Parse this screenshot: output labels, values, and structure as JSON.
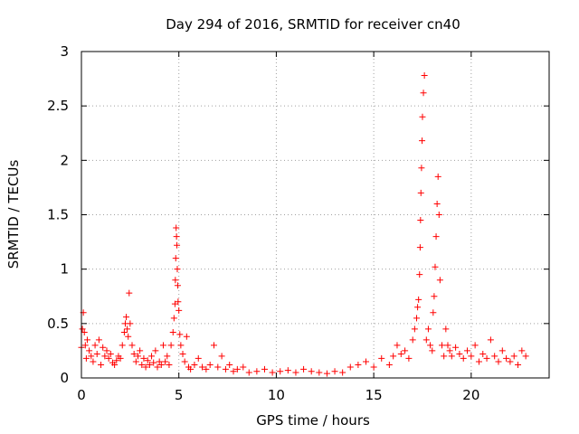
{
  "chart_data": {
    "type": "scatter",
    "title": "Day 294 of 2016, SRMTID for receiver cn40",
    "xlabel": "GPS time / hours",
    "ylabel": "SRMTID / TECUs",
    "xlim": [
      0,
      24
    ],
    "ylim": [
      0,
      3
    ],
    "xticks": [
      0,
      5,
      10,
      15,
      20
    ],
    "xtick_labels": [
      "0",
      "5",
      "10",
      "15",
      "20"
    ],
    "yticks": [
      0,
      0.5,
      1,
      1.5,
      2,
      2.5,
      3
    ],
    "ytick_labels": [
      "0",
      "0.5",
      "1",
      "1.5",
      "2",
      "2.5",
      "3"
    ],
    "grid": true,
    "marker": "+",
    "series": [
      {
        "name": "cn40",
        "color": "#ff0000",
        "x": [
          0.0,
          0.05,
          0.1,
          0.15,
          0.2,
          0.25,
          0.3,
          0.4,
          0.5,
          0.6,
          0.7,
          0.8,
          0.9,
          1.0,
          1.1,
          1.2,
          1.3,
          1.4,
          1.5,
          1.6,
          1.7,
          1.8,
          1.9,
          2.0,
          2.1,
          2.2,
          2.25,
          2.3,
          2.35,
          2.4,
          2.45,
          2.5,
          2.6,
          2.7,
          2.8,
          2.9,
          3.0,
          3.1,
          3.2,
          3.3,
          3.4,
          3.5,
          3.6,
          3.7,
          3.8,
          3.9,
          4.0,
          4.1,
          4.2,
          4.3,
          4.4,
          4.5,
          4.6,
          4.7,
          4.75,
          4.8,
          4.82,
          4.84,
          4.86,
          4.88,
          4.9,
          4.92,
          4.94,
          4.96,
          5.0,
          5.05,
          5.1,
          5.2,
          5.3,
          5.4,
          5.5,
          5.6,
          5.8,
          6.0,
          6.2,
          6.4,
          6.6,
          6.8,
          7.0,
          7.2,
          7.4,
          7.6,
          7.8,
          8.0,
          8.3,
          8.6,
          9.0,
          9.4,
          9.8,
          10.2,
          10.6,
          11.0,
          11.4,
          11.8,
          12.2,
          12.6,
          13.0,
          13.4,
          13.8,
          14.2,
          14.6,
          15.0,
          15.4,
          15.8,
          16.0,
          16.2,
          16.4,
          16.6,
          16.8,
          17.0,
          17.1,
          17.2,
          17.25,
          17.3,
          17.35,
          17.38,
          17.4,
          17.42,
          17.45,
          17.48,
          17.5,
          17.55,
          17.6,
          17.7,
          17.8,
          17.9,
          18.0,
          18.05,
          18.1,
          18.15,
          18.2,
          18.25,
          18.3,
          18.35,
          18.4,
          18.5,
          18.6,
          18.7,
          18.8,
          18.9,
          19.0,
          19.2,
          19.4,
          19.6,
          19.8,
          20.0,
          20.2,
          20.4,
          20.6,
          20.8,
          21.0,
          21.2,
          21.4,
          21.6,
          21.8,
          22.0,
          22.2,
          22.4,
          22.6,
          22.8
        ],
        "y": [
          0.28,
          0.45,
          0.6,
          0.42,
          0.3,
          0.18,
          0.35,
          0.25,
          0.2,
          0.15,
          0.3,
          0.22,
          0.35,
          0.12,
          0.28,
          0.2,
          0.25,
          0.18,
          0.22,
          0.14,
          0.12,
          0.16,
          0.2,
          0.18,
          0.3,
          0.42,
          0.5,
          0.56,
          0.45,
          0.38,
          0.78,
          0.5,
          0.3,
          0.22,
          0.15,
          0.2,
          0.25,
          0.12,
          0.18,
          0.1,
          0.16,
          0.12,
          0.2,
          0.14,
          0.25,
          0.1,
          0.15,
          0.12,
          0.3,
          0.15,
          0.2,
          0.12,
          0.3,
          0.42,
          0.55,
          0.68,
          0.9,
          1.1,
          1.38,
          1.3,
          1.22,
          1.0,
          0.85,
          0.7,
          0.62,
          0.4,
          0.3,
          0.22,
          0.15,
          0.38,
          0.1,
          0.08,
          0.12,
          0.18,
          0.1,
          0.08,
          0.12,
          0.3,
          0.1,
          0.2,
          0.08,
          0.12,
          0.06,
          0.08,
          0.1,
          0.05,
          0.06,
          0.08,
          0.05,
          0.06,
          0.07,
          0.05,
          0.08,
          0.06,
          0.05,
          0.04,
          0.06,
          0.05,
          0.1,
          0.12,
          0.15,
          0.1,
          0.18,
          0.12,
          0.2,
          0.3,
          0.22,
          0.25,
          0.18,
          0.35,
          0.45,
          0.55,
          0.65,
          0.72,
          0.95,
          1.2,
          1.45,
          1.7,
          1.93,
          2.18,
          2.4,
          2.62,
          2.78,
          0.35,
          0.45,
          0.3,
          0.25,
          0.6,
          0.75,
          1.02,
          1.3,
          1.6,
          1.85,
          1.5,
          0.9,
          0.3,
          0.2,
          0.45,
          0.3,
          0.25,
          0.2,
          0.28,
          0.22,
          0.18,
          0.25,
          0.2,
          0.3,
          0.15,
          0.22,
          0.18,
          0.35,
          0.2,
          0.15,
          0.25,
          0.18,
          0.15,
          0.2,
          0.12,
          0.25,
          0.2
        ]
      }
    ]
  }
}
